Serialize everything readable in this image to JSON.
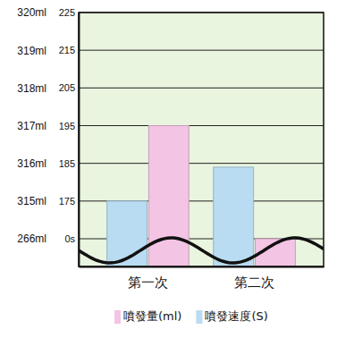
{
  "chart_data": {
    "type": "bar",
    "categories": [
      "第一次",
      "第二次"
    ],
    "series": [
      {
        "name": "噴發量(ml)",
        "color": "#f3c4e4",
        "values": [
          317,
          266
        ]
      },
      {
        "name": "噴發速度(S)",
        "color": "#b9dcf2",
        "values": [
          175,
          184
        ],
        "axis": "y2"
      }
    ],
    "ylim": [
      265,
      320
    ],
    "yticks": [
      {
        "value": 266,
        "label": "266ml"
      },
      {
        "value": 315,
        "label": "315ml"
      },
      {
        "value": 316,
        "label": "316ml"
      },
      {
        "value": 317,
        "label": "317ml"
      },
      {
        "value": 318,
        "label": "318ml"
      },
      {
        "value": 319,
        "label": "319ml"
      },
      {
        "value": 320,
        "label": "320ml"
      }
    ],
    "y2lim": [
      -10,
      225
    ],
    "y2ticks": [
      {
        "value": 0,
        "label": "0s"
      },
      175,
      185,
      195,
      205,
      215,
      225
    ],
    "grid": true,
    "legend": "bottom"
  }
}
